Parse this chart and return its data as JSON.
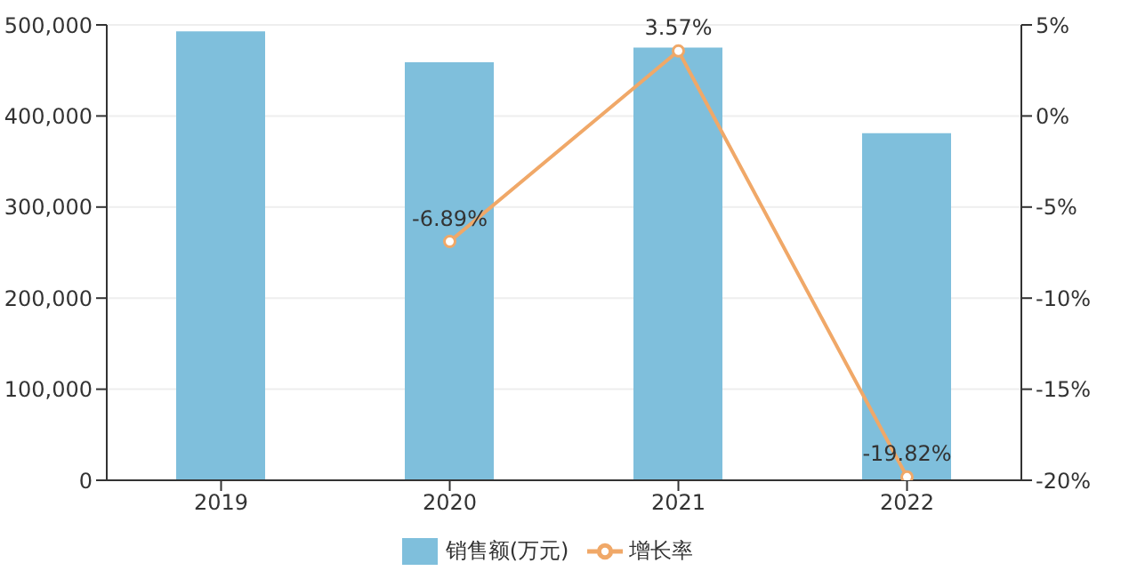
{
  "chart_data": {
    "type": "bar",
    "categories": [
      "2019",
      "2020",
      "2021",
      "2022"
    ],
    "series": [
      {
        "name": "销售额(万元)",
        "color": "#7fbfdc",
        "values": [
          493000,
          459000,
          475000,
          381000
        ]
      },
      {
        "name": "增长率",
        "type": "line",
        "axis": "y2",
        "color": "#f0a868",
        "marker": "circle",
        "values": [
          null,
          -6.89,
          3.57,
          -19.82
        ],
        "value_labels": [
          null,
          "-6.89%",
          "3.57%",
          "-19.82%"
        ]
      }
    ],
    "ylim": [
      0,
      500000
    ],
    "yticks": [
      {
        "value": 0,
        "label": "0"
      },
      {
        "value": 100000,
        "label": "100,000"
      },
      {
        "value": 200000,
        "label": "200,000"
      },
      {
        "value": 300000,
        "label": "300,000"
      },
      {
        "value": 400000,
        "label": "400,000"
      },
      {
        "value": 500000,
        "label": "500,000"
      }
    ],
    "y2lim": [
      -20,
      5
    ],
    "y2ticks": [
      {
        "value": -20,
        "label": "-20%"
      },
      {
        "value": -15,
        "label": "-15%"
      },
      {
        "value": -10,
        "label": "-10%"
      },
      {
        "value": -5,
        "label": "-5%"
      },
      {
        "value": 0,
        "label": "0%"
      },
      {
        "value": 5,
        "label": "5%"
      }
    ],
    "grid": "y",
    "legend": "bottom"
  }
}
